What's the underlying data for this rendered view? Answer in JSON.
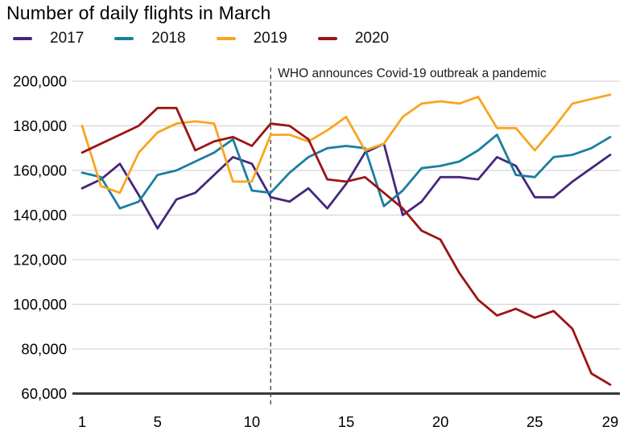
{
  "chart": {
    "title": "Number of daily flights in March"
  },
  "chart_data": {
    "type": "line",
    "title": "Number of daily flights in March",
    "x": [
      1,
      2,
      3,
      4,
      5,
      6,
      7,
      8,
      9,
      10,
      11,
      12,
      13,
      14,
      15,
      16,
      17,
      18,
      19,
      20,
      21,
      22,
      23,
      24,
      25,
      26,
      27,
      28,
      29
    ],
    "xticks": [
      1,
      5,
      10,
      15,
      20,
      25,
      29
    ],
    "yticks": [
      60000,
      80000,
      100000,
      120000,
      140000,
      160000,
      180000,
      200000
    ],
    "ylim": [
      60000,
      205000
    ],
    "xlabel": "",
    "ylabel": "",
    "grid": "horizontal",
    "legend_position": "top-left",
    "annotation": {
      "text": "WHO announces Covid-19 outbreak a pandemic",
      "x": 11,
      "style": "dashed-vertical-line"
    },
    "series": [
      {
        "name": "2017",
        "color": "#45277B",
        "values": [
          152000,
          156000,
          163000,
          149000,
          134000,
          147000,
          150000,
          158000,
          166000,
          163000,
          148000,
          146000,
          152000,
          143000,
          154000,
          168000,
          172000,
          140000,
          146000,
          157000,
          157000,
          156000,
          166000,
          162000,
          148000,
          148000,
          155000,
          161000,
          167000
        ]
      },
      {
        "name": "2018",
        "color": "#1B7EA1",
        "values": [
          159000,
          157000,
          143000,
          146000,
          158000,
          160000,
          164000,
          168000,
          174000,
          151000,
          150000,
          159000,
          166000,
          170000,
          171000,
          170000,
          144000,
          151000,
          161000,
          162000,
          164000,
          169000,
          176000,
          158000,
          157000,
          166000,
          167000,
          170000,
          175000
        ]
      },
      {
        "name": "2019",
        "color": "#F9A51F",
        "values": [
          180000,
          153000,
          150000,
          168000,
          177000,
          181000,
          182000,
          181000,
          155000,
          155000,
          176000,
          176000,
          173000,
          178000,
          184000,
          169000,
          172000,
          184000,
          190000,
          191000,
          190000,
          193000,
          179000,
          179000,
          169000,
          179000,
          190000,
          192000,
          194000
        ]
      },
      {
        "name": "2020",
        "color": "#9C1414",
        "values": [
          168000,
          172000,
          176000,
          180000,
          188000,
          188000,
          169000,
          173000,
          175000,
          171000,
          181000,
          180000,
          174000,
          156000,
          155000,
          157000,
          150000,
          143000,
          133000,
          129000,
          114000,
          102000,
          95000,
          98000,
          94000,
          97000,
          89000,
          69000,
          64000
        ]
      }
    ]
  },
  "style": {
    "gridline_color": "#d6d6d6",
    "axis_color": "#383838",
    "dashed_line_color": "#4a4a4a",
    "text_color": "#000000"
  }
}
